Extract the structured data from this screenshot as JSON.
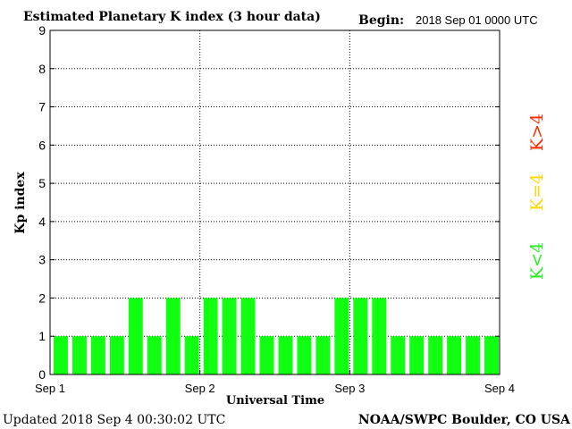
{
  "header": {
    "title": "Estimated Planetary K index (3 hour data)",
    "begin_label": "Begin:",
    "begin_value": "2018 Sep 01 0000 UTC"
  },
  "footer": {
    "updated": "Updated 2018 Sep  4 00:30:02 UTC",
    "source": "NOAA/SWPC Boulder, CO USA"
  },
  "legend": {
    "above": {
      "label": "K>4",
      "color": "#ff2a00"
    },
    "equal": {
      "label": "K=4",
      "color": "#ffd700"
    },
    "below": {
      "label": "K<4",
      "color": "#22ee22"
    }
  },
  "chart_data": {
    "type": "bar",
    "title": "Estimated Planetary K index (3 hour data)",
    "xlabel": "Universal Time",
    "ylabel": "Kp index",
    "ylim": [
      0,
      9
    ],
    "yticks": [
      "0",
      "1",
      "2",
      "3",
      "4",
      "5",
      "6",
      "7",
      "8",
      "9"
    ],
    "xticks": [
      "Sep 1",
      "Sep 2",
      "Sep 3",
      "Sep 4"
    ],
    "grid": true,
    "bar_color": "#11ff11",
    "values": [
      1,
      1,
      1,
      1,
      2,
      1,
      2,
      1,
      2,
      2,
      2,
      1,
      1,
      1,
      1,
      2,
      2,
      2,
      1,
      1,
      1,
      1,
      1,
      1
    ]
  }
}
